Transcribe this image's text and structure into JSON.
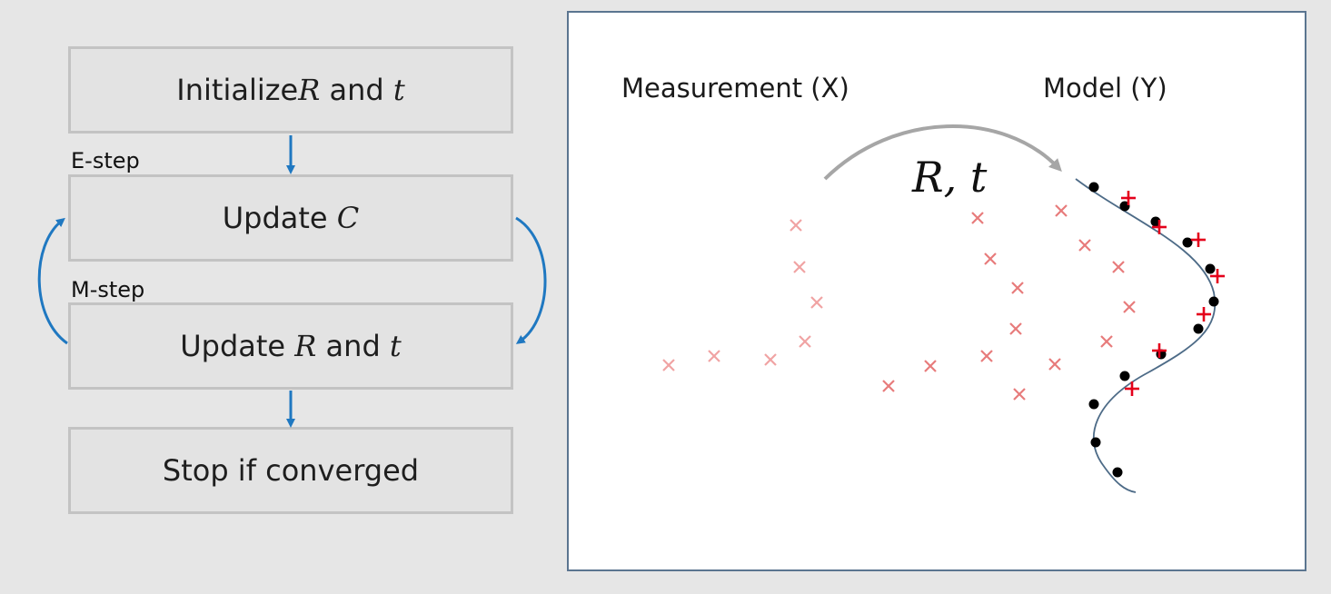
{
  "flow": {
    "init_box": {
      "prefix": "Initialize ",
      "var1": "R",
      "mid": " and ",
      "var2": "t"
    },
    "e_step_label": "E-step",
    "update_c_box": {
      "prefix": "Update ",
      "var1": "C"
    },
    "m_step_label": "M-step",
    "update_rt_box": {
      "prefix": "Update ",
      "var1": "R",
      "mid": " and ",
      "var2": "t"
    },
    "stop_box": {
      "text": "Stop if converged"
    }
  },
  "panel": {
    "measurement_label": "Measurement (X)",
    "model_label": "Model (Y)",
    "transform_label": "R, t"
  },
  "colors": {
    "arrow_blue": "#1f78c1",
    "faint_marker": "#f0a3a3",
    "mid_marker": "#e77b7b",
    "bright_marker": "#e4001b",
    "model_point": "#000000",
    "model_curve": "#4d6b87",
    "transform_arrow": "#a6a6a6"
  }
}
